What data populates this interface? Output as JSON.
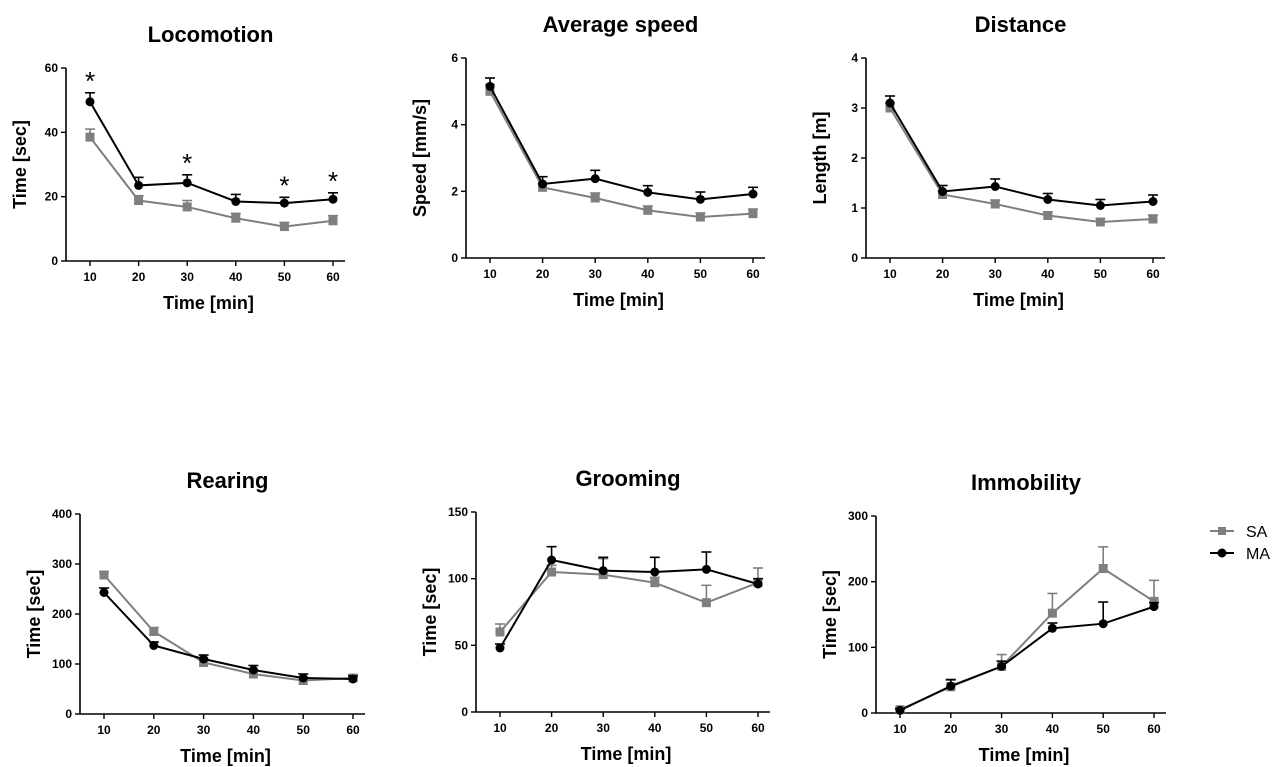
{
  "legend": {
    "items": [
      {
        "label": "SA",
        "color": "#7f7f7f",
        "marker": "square"
      },
      {
        "label": "MA",
        "color": "#000000",
        "marker": "circle"
      }
    ]
  },
  "chart_data": [
    {
      "type": "line",
      "title": "Locomotion",
      "xlabel": "Time [min]",
      "ylabel": "Time [sec]",
      "x": [
        10,
        20,
        30,
        40,
        50,
        60
      ],
      "ylim": [
        0,
        60
      ],
      "yticks": [
        0,
        20,
        40,
        60
      ],
      "series": [
        {
          "name": "SA",
          "values": [
            38.5,
            18.8,
            16.8,
            13.3,
            10.7,
            12.5
          ],
          "errors": [
            2.5,
            1.5,
            2.0,
            1.5,
            1.3,
            1.6
          ]
        },
        {
          "name": "MA",
          "values": [
            49.5,
            23.5,
            24.3,
            18.5,
            18.0,
            19.2
          ],
          "errors": [
            2.8,
            2.5,
            2.5,
            2.2,
            1.8,
            2.0
          ]
        }
      ],
      "annotations": [
        {
          "text": "*",
          "x": 10
        },
        {
          "text": "*",
          "x": 30
        },
        {
          "text": "*",
          "x": 50
        },
        {
          "text": "*",
          "x": 60
        }
      ]
    },
    {
      "type": "line",
      "title": "Average speed",
      "xlabel": "Time [min]",
      "ylabel": "Speed [mm/s]",
      "x": [
        10,
        20,
        30,
        40,
        50,
        60
      ],
      "ylim": [
        0,
        6
      ],
      "yticks": [
        0,
        2,
        4,
        6
      ],
      "series": [
        {
          "name": "SA",
          "values": [
            5.0,
            2.12,
            1.8,
            1.43,
            1.23,
            1.33
          ],
          "errors": [
            0.2,
            0.12,
            0.15,
            0.13,
            0.12,
            0.14
          ]
        },
        {
          "name": "MA",
          "values": [
            5.15,
            2.22,
            2.38,
            1.97,
            1.76,
            1.92
          ],
          "errors": [
            0.25,
            0.22,
            0.25,
            0.2,
            0.22,
            0.2
          ]
        }
      ]
    },
    {
      "type": "line",
      "title": "Distance",
      "xlabel": "Time [min]",
      "ylabel": "Length [m]",
      "x": [
        10,
        20,
        30,
        40,
        50,
        60
      ],
      "ylim": [
        0,
        4
      ],
      "yticks": [
        0,
        1,
        2,
        3,
        4
      ],
      "series": [
        {
          "name": "SA",
          "values": [
            3.0,
            1.27,
            1.08,
            0.85,
            0.72,
            0.78
          ],
          "errors": [
            0.1,
            0.07,
            0.08,
            0.07,
            0.07,
            0.08
          ]
        },
        {
          "name": "MA",
          "values": [
            3.1,
            1.33,
            1.43,
            1.17,
            1.05,
            1.13
          ],
          "errors": [
            0.14,
            0.12,
            0.15,
            0.12,
            0.12,
            0.13
          ]
        }
      ]
    },
    {
      "type": "line",
      "title": "Rearing",
      "xlabel": "Time [min]",
      "ylabel": "Time [sec]",
      "x": [
        10,
        20,
        30,
        40,
        50,
        60
      ],
      "ylim": [
        0,
        400
      ],
      "yticks": [
        0,
        100,
        200,
        300,
        400
      ],
      "series": [
        {
          "name": "SA",
          "values": [
            278,
            165,
            103,
            80,
            67,
            72
          ],
          "errors": [
            7,
            8,
            8,
            8,
            6,
            6
          ]
        },
        {
          "name": "MA",
          "values": [
            243,
            137,
            110,
            88,
            72,
            70
          ],
          "errors": [
            9,
            7,
            8,
            9,
            8,
            6
          ]
        }
      ]
    },
    {
      "type": "line",
      "title": "Grooming",
      "xlabel": "Time [min]",
      "ylabel": "Time [sec]",
      "x": [
        10,
        20,
        30,
        40,
        50,
        60
      ],
      "ylim": [
        0,
        150
      ],
      "yticks": [
        0,
        50,
        100,
        150
      ],
      "series": [
        {
          "name": "SA",
          "values": [
            60,
            105,
            103,
            97,
            82,
            97
          ],
          "errors": [
            6,
            5,
            12,
            4,
            13,
            11
          ]
        },
        {
          "name": "MA",
          "values": [
            48,
            114,
            106,
            105,
            107,
            96
          ],
          "errors": [
            3,
            10,
            10,
            11,
            13,
            4
          ]
        }
      ]
    },
    {
      "type": "line",
      "title": "Immobility",
      "xlabel": "Time [min]",
      "ylabel": "Time [sec]",
      "x": [
        10,
        20,
        30,
        40,
        50,
        60
      ],
      "ylim": [
        0,
        300
      ],
      "yticks": [
        0,
        100,
        200,
        300
      ],
      "series": [
        {
          "name": "SA",
          "values": [
            5,
            40,
            71,
            152,
            220,
            170
          ],
          "errors": [
            3,
            10,
            18,
            30,
            33,
            32
          ]
        },
        {
          "name": "MA",
          "values": [
            4,
            41,
            71,
            129,
            136,
            162
          ],
          "errors": [
            2,
            10,
            8,
            8,
            33,
            6
          ]
        }
      ]
    }
  ]
}
